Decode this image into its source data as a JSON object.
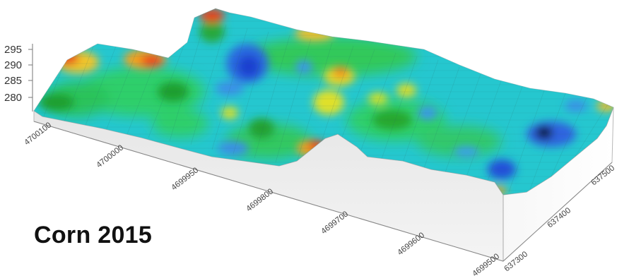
{
  "chart_data": {
    "type": "surface",
    "title": "Corn 2015",
    "z_ticks": [
      "295",
      "290",
      "285",
      "280"
    ],
    "x_ticks": [
      "4700100",
      "4700000",
      "4699950",
      "4699800",
      "4699700",
      "4699600",
      "4699500"
    ],
    "y_ticks": [
      "637300",
      "637400",
      "637500"
    ],
    "zlim": [
      278,
      297
    ],
    "colorscale": [
      "#1a1a1a",
      "#1f4fe0",
      "#27c2e8",
      "#1fd07a",
      "#2aa12a",
      "#d6e22a",
      "#f39a1e",
      "#e8281c"
    ],
    "grid": true
  }
}
